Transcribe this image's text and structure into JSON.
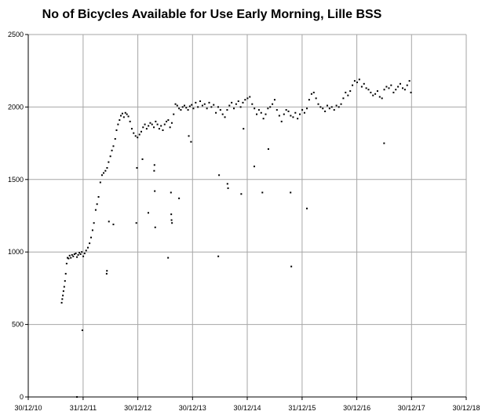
{
  "chart_data": {
    "type": "scatter",
    "title": "No of Bicycles Available for Use Early Morning, Lille BSS",
    "xlabel": "",
    "ylabel": "",
    "x_axis_type": "date",
    "xlim": [
      "2010-12-30",
      "2018-12-30"
    ],
    "ylim": [
      0,
      2500
    ],
    "x_ticks": [
      {
        "date": "2010-12-30",
        "label": "30/12/10"
      },
      {
        "date": "2011-12-31",
        "label": "31/12/11"
      },
      {
        "date": "2012-12-30",
        "label": "30/12/12"
      },
      {
        "date": "2013-12-30",
        "label": "30/12/13"
      },
      {
        "date": "2014-12-30",
        "label": "30/12/14"
      },
      {
        "date": "2015-12-31",
        "label": "31/12/15"
      },
      {
        "date": "2016-12-30",
        "label": "30/12/16"
      },
      {
        "date": "2017-12-30",
        "label": "30/12/17"
      },
      {
        "date": "2018-12-30",
        "label": "30/12/18"
      }
    ],
    "y_ticks": [
      0,
      500,
      1000,
      1500,
      2000,
      2500
    ],
    "grid": true,
    "marker_color": "#000000",
    "series": [
      {
        "values": [
          {
            "x": "2011-08-10",
            "y": 650
          },
          {
            "x": "2011-08-14",
            "y": 675
          },
          {
            "x": "2011-08-18",
            "y": 700
          },
          {
            "x": "2011-08-22",
            "y": 730
          },
          {
            "x": "2011-08-27",
            "y": 760
          },
          {
            "x": "2011-09-01",
            "y": 800
          },
          {
            "x": "2011-09-06",
            "y": 850
          },
          {
            "x": "2011-09-12",
            "y": 920
          },
          {
            "x": "2011-09-18",
            "y": 960
          },
          {
            "x": "2011-09-25",
            "y": 955
          },
          {
            "x": "2011-10-02",
            "y": 975
          },
          {
            "x": "2011-10-10",
            "y": 960
          },
          {
            "x": "2011-10-18",
            "y": 980
          },
          {
            "x": "2011-10-26",
            "y": 970
          },
          {
            "x": "2011-11-03",
            "y": 985
          },
          {
            "x": "2011-11-12",
            "y": 990
          },
          {
            "x": "2011-11-20",
            "y": 965
          },
          {
            "x": "2011-11-28",
            "y": 980
          },
          {
            "x": "2011-12-06",
            "y": 995
          },
          {
            "x": "2011-12-14",
            "y": 985
          },
          {
            "x": "2011-12-22",
            "y": 1000
          },
          {
            "x": "2012-01-01",
            "y": 970
          },
          {
            "x": "2012-01-10",
            "y": 990
          },
          {
            "x": "2012-01-20",
            "y": 1010
          },
          {
            "x": "2012-02-01",
            "y": 1030
          },
          {
            "x": "2012-02-12",
            "y": 1060
          },
          {
            "x": "2012-02-22",
            "y": 1100
          },
          {
            "x": "2012-03-03",
            "y": 1150
          },
          {
            "x": "2012-03-12",
            "y": 1200
          },
          {
            "x": "2012-03-24",
            "y": 1290
          },
          {
            "x": "2012-04-02",
            "y": 1330
          },
          {
            "x": "2012-04-12",
            "y": 1380
          },
          {
            "x": "2012-04-24",
            "y": 1480
          },
          {
            "x": "2012-05-05",
            "y": 1530
          },
          {
            "x": "2012-05-16",
            "y": 1545
          },
          {
            "x": "2012-05-28",
            "y": 1560
          },
          {
            "x": "2012-06-08",
            "y": 1580
          },
          {
            "x": "2012-06-18",
            "y": 1620
          },
          {
            "x": "2012-06-30",
            "y": 1660
          },
          {
            "x": "2012-07-10",
            "y": 1700
          },
          {
            "x": "2012-07-20",
            "y": 1730
          },
          {
            "x": "2012-08-01",
            "y": 1780
          },
          {
            "x": "2012-08-10",
            "y": 1840
          },
          {
            "x": "2012-08-20",
            "y": 1880
          },
          {
            "x": "2012-08-30",
            "y": 1910
          },
          {
            "x": "2012-09-08",
            "y": 1940
          },
          {
            "x": "2012-09-18",
            "y": 1955
          },
          {
            "x": "2012-09-28",
            "y": 1930
          },
          {
            "x": "2012-10-08",
            "y": 1960
          },
          {
            "x": "2012-10-18",
            "y": 1950
          },
          {
            "x": "2012-10-28",
            "y": 1935
          },
          {
            "x": "2012-11-08",
            "y": 1900
          },
          {
            "x": "2012-11-20",
            "y": 1850
          },
          {
            "x": "2012-12-02",
            "y": 1820
          },
          {
            "x": "2012-12-15",
            "y": 1800
          },
          {
            "x": "2012-12-28",
            "y": 1790
          },
          {
            "x": "2013-01-10",
            "y": 1810
          },
          {
            "x": "2013-01-22",
            "y": 1830
          },
          {
            "x": "2013-02-03",
            "y": 1860
          },
          {
            "x": "2013-02-15",
            "y": 1880
          },
          {
            "x": "2013-02-27",
            "y": 1850
          },
          {
            "x": "2013-03-11",
            "y": 1870
          },
          {
            "x": "2013-03-23",
            "y": 1890
          },
          {
            "x": "2013-04-04",
            "y": 1880
          },
          {
            "x": "2013-04-16",
            "y": 1860
          },
          {
            "x": "2013-04-28",
            "y": 1900
          },
          {
            "x": "2013-05-10",
            "y": 1880
          },
          {
            "x": "2013-05-22",
            "y": 1850
          },
          {
            "x": "2013-06-03",
            "y": 1870
          },
          {
            "x": "2013-06-15",
            "y": 1840
          },
          {
            "x": "2013-06-27",
            "y": 1880
          },
          {
            "x": "2013-07-09",
            "y": 1900
          },
          {
            "x": "2013-07-21",
            "y": 1910
          },
          {
            "x": "2013-08-02",
            "y": 1860
          },
          {
            "x": "2013-08-14",
            "y": 1890
          },
          {
            "x": "2013-08-26",
            "y": 1950
          },
          {
            "x": "2013-09-07",
            "y": 2020
          },
          {
            "x": "2013-09-19",
            "y": 2010
          },
          {
            "x": "2013-10-01",
            "y": 1990
          },
          {
            "x": "2013-10-13",
            "y": 1980
          },
          {
            "x": "2013-10-25",
            "y": 2000
          },
          {
            "x": "2013-11-06",
            "y": 2010
          },
          {
            "x": "2013-11-18",
            "y": 1995
          },
          {
            "x": "2013-11-30",
            "y": 1980
          },
          {
            "x": "2013-12-12",
            "y": 2005
          },
          {
            "x": "2013-12-24",
            "y": 2015
          },
          {
            "x": "2014-01-05",
            "y": 1990
          },
          {
            "x": "2014-01-20",
            "y": 2030
          },
          {
            "x": "2014-02-04",
            "y": 2000
          },
          {
            "x": "2014-02-19",
            "y": 2040
          },
          {
            "x": "2014-03-06",
            "y": 2010
          },
          {
            "x": "2014-03-21",
            "y": 2020
          },
          {
            "x": "2014-04-05",
            "y": 1990
          },
          {
            "x": "2014-04-20",
            "y": 2030
          },
          {
            "x": "2014-05-05",
            "y": 2000
          },
          {
            "x": "2014-05-20",
            "y": 2015
          },
          {
            "x": "2014-06-04",
            "y": 1960
          },
          {
            "x": "2014-06-19",
            "y": 2000
          },
          {
            "x": "2014-07-04",
            "y": 1980
          },
          {
            "x": "2014-07-19",
            "y": 1950
          },
          {
            "x": "2014-08-03",
            "y": 1930
          },
          {
            "x": "2014-08-18",
            "y": 1980
          },
          {
            "x": "2014-09-02",
            "y": 2010
          },
          {
            "x": "2014-09-17",
            "y": 2030
          },
          {
            "x": "2014-10-02",
            "y": 1990
          },
          {
            "x": "2014-10-17",
            "y": 2020
          },
          {
            "x": "2014-11-01",
            "y": 2040
          },
          {
            "x": "2014-11-16",
            "y": 2000
          },
          {
            "x": "2014-12-01",
            "y": 2030
          },
          {
            "x": "2014-12-16",
            "y": 2050
          },
          {
            "x": "2015-01-01",
            "y": 2060
          },
          {
            "x": "2015-01-16",
            "y": 2070
          },
          {
            "x": "2015-02-01",
            "y": 2020
          },
          {
            "x": "2015-02-16",
            "y": 1990
          },
          {
            "x": "2015-03-03",
            "y": 1950
          },
          {
            "x": "2015-03-18",
            "y": 1980
          },
          {
            "x": "2015-04-02",
            "y": 1960
          },
          {
            "x": "2015-04-17",
            "y": 1920
          },
          {
            "x": "2015-05-02",
            "y": 1950
          },
          {
            "x": "2015-05-17",
            "y": 1990
          },
          {
            "x": "2015-06-01",
            "y": 2000
          },
          {
            "x": "2015-06-16",
            "y": 2020
          },
          {
            "x": "2015-07-01",
            "y": 2050
          },
          {
            "x": "2015-07-16",
            "y": 1980
          },
          {
            "x": "2015-08-01",
            "y": 1940
          },
          {
            "x": "2015-08-16",
            "y": 1900
          },
          {
            "x": "2015-09-01",
            "y": 1950
          },
          {
            "x": "2015-09-16",
            "y": 1980
          },
          {
            "x": "2015-10-01",
            "y": 1970
          },
          {
            "x": "2015-10-16",
            "y": 1940
          },
          {
            "x": "2015-11-01",
            "y": 1930
          },
          {
            "x": "2015-11-16",
            "y": 1960
          },
          {
            "x": "2015-12-01",
            "y": 1920
          },
          {
            "x": "2015-12-16",
            "y": 1950
          },
          {
            "x": "2016-01-01",
            "y": 1980
          },
          {
            "x": "2016-01-16",
            "y": 1960
          },
          {
            "x": "2016-02-01",
            "y": 1990
          },
          {
            "x": "2016-02-16",
            "y": 2050
          },
          {
            "x": "2016-03-03",
            "y": 2090
          },
          {
            "x": "2016-03-18",
            "y": 2100
          },
          {
            "x": "2016-04-02",
            "y": 2060
          },
          {
            "x": "2016-04-17",
            "y": 2020
          },
          {
            "x": "2016-05-02",
            "y": 2000
          },
          {
            "x": "2016-05-17",
            "y": 1990
          },
          {
            "x": "2016-06-01",
            "y": 1970
          },
          {
            "x": "2016-06-16",
            "y": 2010
          },
          {
            "x": "2016-07-01",
            "y": 1990
          },
          {
            "x": "2016-07-16",
            "y": 2000
          },
          {
            "x": "2016-08-01",
            "y": 1980
          },
          {
            "x": "2016-08-16",
            "y": 2010
          },
          {
            "x": "2016-09-01",
            "y": 2000
          },
          {
            "x": "2016-09-16",
            "y": 2020
          },
          {
            "x": "2016-10-01",
            "y": 2060
          },
          {
            "x": "2016-10-16",
            "y": 2100
          },
          {
            "x": "2016-11-01",
            "y": 2080
          },
          {
            "x": "2016-11-16",
            "y": 2110
          },
          {
            "x": "2016-12-01",
            "y": 2150
          },
          {
            "x": "2016-12-16",
            "y": 2180
          },
          {
            "x": "2017-01-01",
            "y": 2170
          },
          {
            "x": "2017-01-16",
            "y": 2190
          },
          {
            "x": "2017-02-01",
            "y": 2140
          },
          {
            "x": "2017-02-16",
            "y": 2160
          },
          {
            "x": "2017-03-03",
            "y": 2130
          },
          {
            "x": "2017-03-18",
            "y": 2120
          },
          {
            "x": "2017-04-02",
            "y": 2100
          },
          {
            "x": "2017-04-17",
            "y": 2080
          },
          {
            "x": "2017-05-02",
            "y": 2090
          },
          {
            "x": "2017-05-17",
            "y": 2110
          },
          {
            "x": "2017-06-01",
            "y": 2070
          },
          {
            "x": "2017-06-16",
            "y": 2060
          },
          {
            "x": "2017-07-01",
            "y": 2120
          },
          {
            "x": "2017-07-16",
            "y": 2140
          },
          {
            "x": "2017-08-01",
            "y": 2130
          },
          {
            "x": "2017-08-16",
            "y": 2150
          },
          {
            "x": "2017-09-01",
            "y": 2100
          },
          {
            "x": "2017-09-16",
            "y": 2120
          },
          {
            "x": "2017-10-01",
            "y": 2140
          },
          {
            "x": "2017-10-16",
            "y": 2160
          },
          {
            "x": "2017-11-01",
            "y": 2130
          },
          {
            "x": "2017-11-16",
            "y": 2120
          },
          {
            "x": "2017-12-01",
            "y": 2150
          },
          {
            "x": "2017-12-16",
            "y": 2180
          },
          {
            "x": "2017-12-26",
            "y": 2100
          },
          {
            "x": "2011-11-20",
            "y": 0
          },
          {
            "x": "2011-12-26",
            "y": 460
          },
          {
            "x": "2012-06-05",
            "y": 850
          },
          {
            "x": "2012-06-07",
            "y": 870
          },
          {
            "x": "2012-06-20",
            "y": 1210
          },
          {
            "x": "2012-07-20",
            "y": 1190
          },
          {
            "x": "2012-12-20",
            "y": 1200
          },
          {
            "x": "2012-12-24",
            "y": 1580
          },
          {
            "x": "2013-01-30",
            "y": 1640
          },
          {
            "x": "2013-03-10",
            "y": 1270
          },
          {
            "x": "2013-04-25",
            "y": 1170
          },
          {
            "x": "2013-04-22",
            "y": 1420
          },
          {
            "x": "2013-04-18",
            "y": 1560
          },
          {
            "x": "2013-04-20",
            "y": 1600
          },
          {
            "x": "2013-07-20",
            "y": 960
          },
          {
            "x": "2013-08-08",
            "y": 1410
          },
          {
            "x": "2013-08-10",
            "y": 1260
          },
          {
            "x": "2013-08-12",
            "y": 1220
          },
          {
            "x": "2013-08-15",
            "y": 1200
          },
          {
            "x": "2013-10-01",
            "y": 1370
          },
          {
            "x": "2013-12-05",
            "y": 1800
          },
          {
            "x": "2014-06-20",
            "y": 970
          },
          {
            "x": "2014-06-25",
            "y": 1530
          },
          {
            "x": "2014-08-20",
            "y": 1470
          },
          {
            "x": "2014-08-24",
            "y": 1440
          },
          {
            "x": "2014-11-20",
            "y": 1400
          },
          {
            "x": "2015-02-15",
            "y": 1590
          },
          {
            "x": "2015-04-10",
            "y": 1410
          },
          {
            "x": "2015-05-20",
            "y": 1710
          },
          {
            "x": "2015-10-15",
            "y": 1410
          },
          {
            "x": "2015-10-20",
            "y": 900
          },
          {
            "x": "2016-02-01",
            "y": 1300
          },
          {
            "x": "2017-06-30",
            "y": 1750
          },
          {
            "x": "2014-12-05",
            "y": 1850
          },
          {
            "x": "2013-12-20",
            "y": 1760
          }
        ]
      }
    ]
  }
}
